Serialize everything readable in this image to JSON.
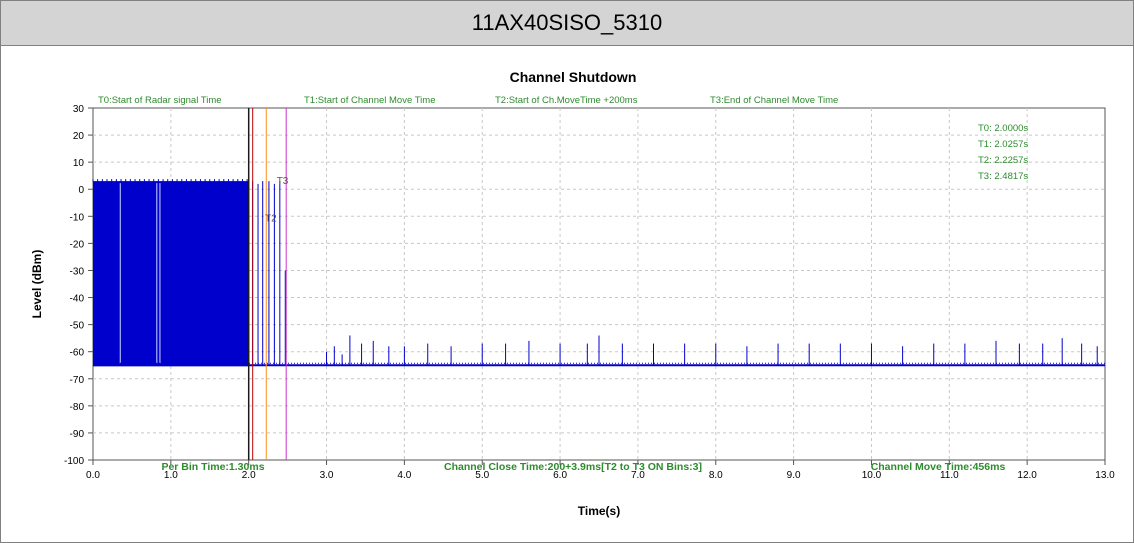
{
  "header": {
    "title": "11AX40SISO_5310"
  },
  "colors": {
    "trace": "#0000cc",
    "grid": "#c8c8c8",
    "green_text": "#2e8b2e",
    "t0_line": "#1a1a1a",
    "t1_line": "#c00000",
    "t2_line": "#ff8c1a",
    "t3_line": "#cc33cc"
  },
  "chart_data": {
    "type": "line",
    "title": "Channel Shutdown",
    "xlabel": "Time(s)",
    "ylabel": "Level (dBm)",
    "xlim": [
      0,
      13
    ],
    "ylim": [
      -100,
      30
    ],
    "x_ticks": [
      "0.0",
      "1.0",
      "2.0",
      "3.0",
      "4.0",
      "5.0",
      "6.0",
      "7.0",
      "8.0",
      "9.0",
      "10.0",
      "11.0",
      "12.0",
      "13.0"
    ],
    "y_ticks": [
      "30",
      "20",
      "10",
      "0",
      "-10",
      "-20",
      "-30",
      "-40",
      "-50",
      "-60",
      "-70",
      "-80",
      "-90",
      "-100"
    ],
    "grid": true,
    "top_labels": [
      "T0:Start of Radar signal Time",
      "T1:Start of Channel Move Time",
      "T2:Start of Ch.MoveTime +200ms",
      "T3:End of Channel Move Time"
    ],
    "marker_readouts": [
      "T0: 2.0000s",
      "T1: 2.0257s",
      "T2: 2.2257s",
      "T3: 2.4817s"
    ],
    "markers": [
      {
        "name": "T0",
        "x": 2.0
      },
      {
        "name": "T1",
        "x": 2.0257
      },
      {
        "name": "T2",
        "x": 2.2257
      },
      {
        "name": "T3",
        "x": 2.4817
      }
    ],
    "marker_tags": [
      "T2",
      "T3"
    ],
    "bottom_labels": [
      "Per Bin Time:1.30ms",
      "Channel Close Time:200+3.9ms[T2 to T3 ON Bins:3]",
      "Channel Move Time:456ms"
    ],
    "series": [
      {
        "noise_floor": -65,
        "segments": [
          {
            "x_start": 0.0,
            "x_end": 2.0,
            "level": 3
          }
        ],
        "spikes": [
          {
            "x": 2.05,
            "y": 3
          },
          {
            "x": 2.12,
            "y": 2
          },
          {
            "x": 2.18,
            "y": 3
          },
          {
            "x": 2.26,
            "y": 3
          },
          {
            "x": 2.33,
            "y": 2
          },
          {
            "x": 2.4,
            "y": 3
          },
          {
            "x": 2.47,
            "y": -30
          },
          {
            "x": 3.0,
            "y": -60
          },
          {
            "x": 3.1,
            "y": -58
          },
          {
            "x": 3.2,
            "y": -61
          },
          {
            "x": 3.3,
            "y": -54
          },
          {
            "x": 3.45,
            "y": -57
          },
          {
            "x": 3.6,
            "y": -56
          },
          {
            "x": 3.8,
            "y": -58
          },
          {
            "x": 4.0,
            "y": -58
          },
          {
            "x": 4.3,
            "y": -57
          },
          {
            "x": 4.6,
            "y": -58
          },
          {
            "x": 5.0,
            "y": -57
          },
          {
            "x": 5.3,
            "y": -57
          },
          {
            "x": 5.6,
            "y": -56
          },
          {
            "x": 6.0,
            "y": -57
          },
          {
            "x": 6.35,
            "y": -57
          },
          {
            "x": 6.5,
            "y": -54
          },
          {
            "x": 6.8,
            "y": -57
          },
          {
            "x": 7.2,
            "y": -57
          },
          {
            "x": 7.6,
            "y": -57
          },
          {
            "x": 8.0,
            "y": -57
          },
          {
            "x": 8.4,
            "y": -58
          },
          {
            "x": 8.8,
            "y": -57
          },
          {
            "x": 9.2,
            "y": -57
          },
          {
            "x": 9.6,
            "y": -57
          },
          {
            "x": 10.0,
            "y": -57
          },
          {
            "x": 10.4,
            "y": -58
          },
          {
            "x": 10.8,
            "y": -57
          },
          {
            "x": 11.2,
            "y": -57
          },
          {
            "x": 11.6,
            "y": -56
          },
          {
            "x": 11.9,
            "y": -57
          },
          {
            "x": 12.2,
            "y": -57
          },
          {
            "x": 12.45,
            "y": -55
          },
          {
            "x": 12.7,
            "y": -57
          },
          {
            "x": 12.9,
            "y": -58
          }
        ]
      }
    ]
  }
}
